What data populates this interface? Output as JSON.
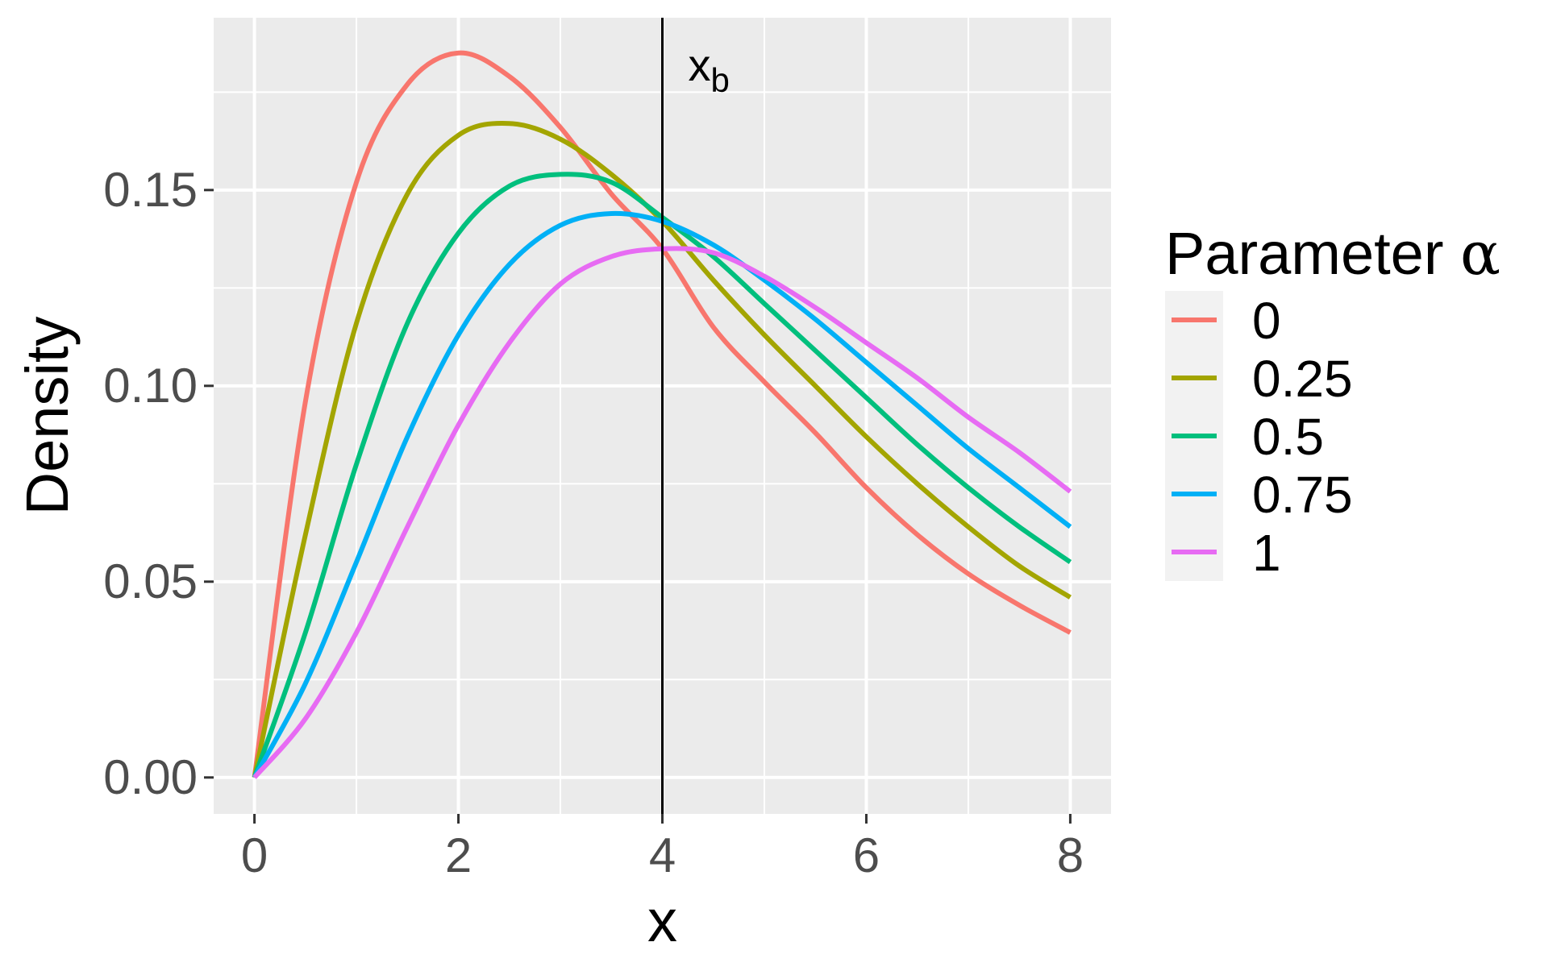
{
  "chart_data": {
    "type": "line",
    "title": "",
    "xlabel": "x",
    "ylabel": "Density",
    "xlim": [
      -0.4,
      8.4
    ],
    "ylim": [
      -0.0093,
      0.194
    ],
    "x_ticks": [
      0,
      2,
      4,
      6,
      8
    ],
    "x_tick_labels": [
      "0",
      "2",
      "4",
      "6",
      "8"
    ],
    "y_ticks": [
      0.0,
      0.05,
      0.1,
      0.15
    ],
    "y_tick_labels": [
      "0.00",
      "0.05",
      "0.10",
      "0.15"
    ],
    "grid": true,
    "background": "#ebebeb",
    "legend": {
      "title": "Parameter",
      "title_symbol": "α",
      "position": "right"
    },
    "vline": {
      "x": 4,
      "label": "x",
      "label_subscript": "b",
      "color": "#000000"
    },
    "series": [
      {
        "name": "0",
        "color": "#F8766D",
        "x": [
          0,
          0.5,
          1,
          1.5,
          2,
          2.5,
          3,
          3.5,
          4,
          4.5,
          5,
          5.5,
          6,
          6.5,
          7,
          7.5,
          8
        ],
        "y": [
          0,
          0.096,
          0.152,
          0.177,
          0.185,
          0.179,
          0.166,
          0.149,
          0.135,
          0.115,
          0.101,
          0.088,
          0.074,
          0.062,
          0.052,
          0.044,
          0.037
        ]
      },
      {
        "name": "0.25",
        "color": "#A3A500",
        "x": [
          0,
          0.5,
          1,
          1.5,
          2,
          2.5,
          3,
          3.5,
          4,
          4.5,
          5,
          5.5,
          6,
          6.5,
          7,
          7.5,
          8
        ],
        "y": [
          0,
          0.062,
          0.116,
          0.149,
          0.164,
          0.167,
          0.163,
          0.154,
          0.142,
          0.127,
          0.113,
          0.1,
          0.087,
          0.075,
          0.064,
          0.054,
          0.046
        ]
      },
      {
        "name": "0.5",
        "color": "#00BF7D",
        "x": [
          0,
          0.5,
          1,
          1.5,
          2,
          2.5,
          3,
          3.5,
          4,
          4.5,
          5,
          5.5,
          6,
          6.5,
          7,
          7.5,
          8
        ],
        "y": [
          0,
          0.037,
          0.08,
          0.116,
          0.139,
          0.151,
          0.154,
          0.152,
          0.143,
          0.133,
          0.121,
          0.109,
          0.097,
          0.085,
          0.074,
          0.064,
          0.055
        ]
      },
      {
        "name": "0.75",
        "color": "#00B0F6",
        "x": [
          0,
          0.5,
          1,
          1.5,
          2,
          2.5,
          3,
          3.5,
          4,
          4.5,
          5,
          5.5,
          6,
          6.5,
          7,
          7.5,
          8
        ],
        "y": [
          0,
          0.024,
          0.055,
          0.087,
          0.113,
          0.131,
          0.141,
          0.144,
          0.142,
          0.136,
          0.127,
          0.117,
          0.106,
          0.095,
          0.084,
          0.074,
          0.064
        ]
      },
      {
        "name": "1",
        "color": "#E76BF3",
        "x": [
          0,
          0.5,
          1,
          1.5,
          2,
          2.5,
          3,
          3.5,
          4,
          4.5,
          5,
          5.5,
          6,
          6.5,
          7,
          7.5,
          8
        ],
        "y": [
          0,
          0.015,
          0.037,
          0.064,
          0.09,
          0.111,
          0.126,
          0.133,
          0.135,
          0.134,
          0.128,
          0.12,
          0.111,
          0.102,
          0.092,
          0.083,
          0.073
        ]
      }
    ]
  }
}
